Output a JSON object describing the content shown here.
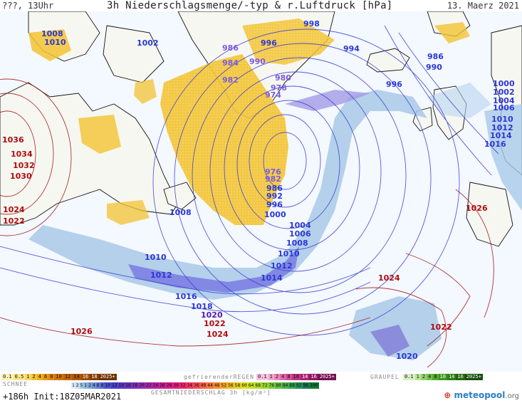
{
  "header": {
    "left": "???, 13Uhr",
    "title": "3h Niederschlagsmenge/-typ & r.Luftdruck [hPa]",
    "date": "13. Maerz 2021"
  },
  "legend": {
    "snow_label": "SCHNEE",
    "snow_scale_top": [
      "0.1",
      "0.5",
      "1",
      "2",
      "4",
      "6",
      "8",
      "10",
      "12",
      "14",
      "16",
      "18",
      "2025+"
    ],
    "freezing_label": "gefrierenderREGEN",
    "freezing_scale": [
      "0.1",
      "1",
      "2",
      "4",
      "8",
      "10",
      "14",
      "16",
      "2025+"
    ],
    "graupel_label": "GRAUPEL",
    "graupel_scale": [
      "0.1",
      "1",
      "2",
      "4",
      "8",
      "10",
      "14",
      "16",
      "2025+"
    ],
    "rain_scale": [
      "1",
      "2",
      "5",
      "1",
      "2",
      "4",
      "6",
      "8",
      "10",
      "12",
      "14",
      "16",
      "18",
      "20",
      "22",
      "24",
      "26",
      "28",
      "30",
      "32",
      "34",
      "36",
      "40",
      "44",
      "48",
      "52",
      "56",
      "58",
      "60",
      "64",
      "68",
      "72",
      "76",
      "80",
      "84",
      "88",
      "92",
      "96",
      "100"
    ],
    "total_caption": "GESAMTNIEDERSCHLAG 3h [kg/m²]",
    "run": "+186h Init:18Z05MAR2021",
    "logo_main": "meteopool",
    "logo_suffix": ".org"
  },
  "map": {
    "isobar_labels_blue": [
      {
        "text": "1008"
      },
      {
        "text": "1010"
      },
      {
        "text": "1002"
      },
      {
        "text": "998"
      },
      {
        "text": "986"
      },
      {
        "text": "996"
      },
      {
        "text": "994"
      },
      {
        "text": "984"
      },
      {
        "text": "990"
      },
      {
        "text": "986"
      },
      {
        "text": "990"
      },
      {
        "text": "996"
      },
      {
        "text": "980"
      },
      {
        "text": "982"
      },
      {
        "text": "976"
      },
      {
        "text": "974"
      },
      {
        "text": "1000"
      },
      {
        "text": "1002"
      },
      {
        "text": "1004"
      },
      {
        "text": "1006"
      },
      {
        "text": "1010"
      },
      {
        "text": "1012"
      },
      {
        "text": "1014"
      },
      {
        "text": "1016"
      },
      {
        "text": "976"
      },
      {
        "text": "982"
      },
      {
        "text": "986"
      },
      {
        "text": "992"
      },
      {
        "text": "996"
      },
      {
        "text": "1000"
      },
      {
        "text": "1004"
      },
      {
        "text": "1006"
      },
      {
        "text": "1008"
      },
      {
        "text": "1010"
      },
      {
        "text": "1012"
      },
      {
        "text": "1014"
      },
      {
        "text": "1008"
      },
      {
        "text": "1010"
      },
      {
        "text": "1012"
      },
      {
        "text": "1016"
      },
      {
        "text": "1018"
      },
      {
        "text": "1020"
      },
      {
        "text": "1020"
      }
    ],
    "isobar_labels_red": [
      {
        "text": "1036"
      },
      {
        "text": "1034"
      },
      {
        "text": "1032"
      },
      {
        "text": "1030"
      },
      {
        "text": "1024"
      },
      {
        "text": "1022"
      },
      {
        "text": "1026"
      },
      {
        "text": "1024"
      },
      {
        "text": "1022"
      },
      {
        "text": "1026"
      },
      {
        "text": "1024"
      },
      {
        "text": "1022"
      }
    ]
  }
}
